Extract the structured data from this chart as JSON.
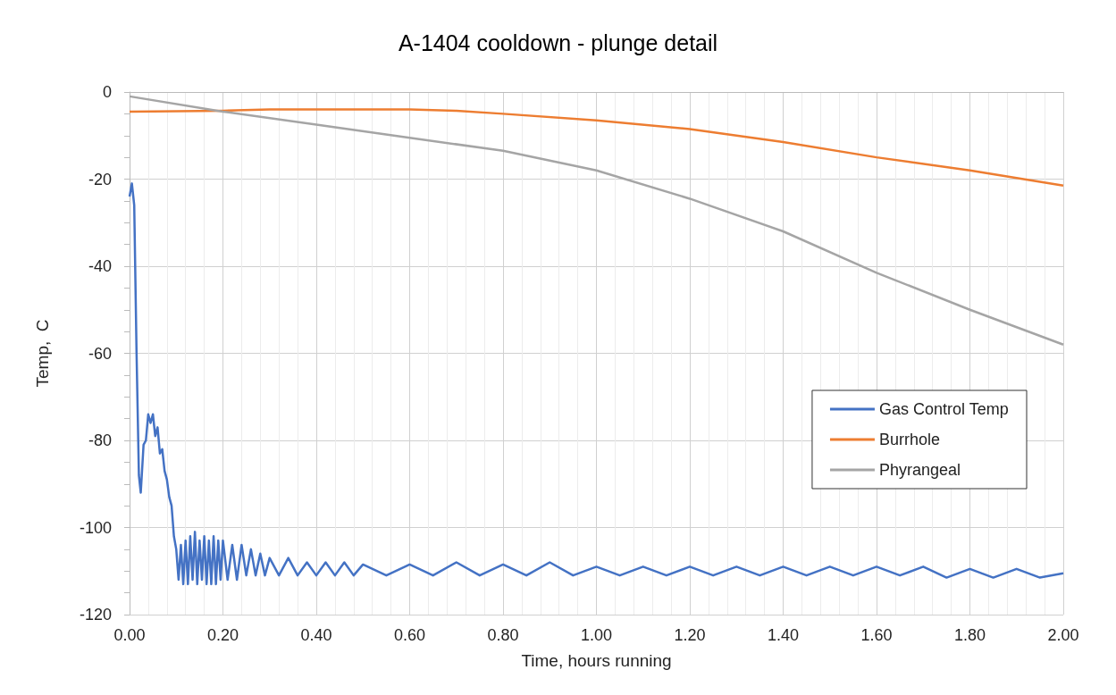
{
  "chart_data": {
    "type": "line",
    "title": "A-1404 cooldown - plunge detail",
    "xlabel": "Time, hours running",
    "ylabel": "Temp,  C",
    "xlim": [
      0,
      2
    ],
    "xticks": [
      {
        "value": 0,
        "label": "0.00"
      },
      {
        "value": 0.2,
        "label": "0.20"
      },
      {
        "value": 0.4,
        "label": "0.40"
      },
      {
        "value": 0.6,
        "label": "0.60"
      },
      {
        "value": 0.8,
        "label": "0.80"
      },
      {
        "value": 1,
        "label": "1.00"
      },
      {
        "value": 1.2,
        "label": "1.20"
      },
      {
        "value": 1.4,
        "label": "1.40"
      },
      {
        "value": 1.6,
        "label": "1.60"
      },
      {
        "value": 1.8,
        "label": "1.80"
      },
      {
        "value": 2,
        "label": "2.00"
      }
    ],
    "ylim": [
      -120,
      0
    ],
    "yticks": [
      -120,
      -100,
      -80,
      -60,
      -40,
      -20,
      0
    ],
    "grid": true,
    "legend": "right",
    "marker": "none",
    "line_style": "solid",
    "series": [
      {
        "name": "Gas Control Temp",
        "color": "#4472c4",
        "x": [
          0,
          0.005,
          0.01,
          0.015,
          0.02,
          0.024,
          0.03,
          0.035,
          0.04,
          0.045,
          0.05,
          0.055,
          0.06,
          0.065,
          0.07,
          0.075,
          0.08,
          0.085,
          0.09,
          0.095,
          0.1,
          0.105,
          0.11,
          0.115,
          0.12,
          0.125,
          0.13,
          0.135,
          0.14,
          0.145,
          0.15,
          0.155,
          0.16,
          0.165,
          0.17,
          0.175,
          0.18,
          0.185,
          0.19,
          0.195,
          0.2,
          0.21,
          0.22,
          0.23,
          0.24,
          0.25,
          0.26,
          0.27,
          0.28,
          0.29,
          0.3,
          0.32,
          0.34,
          0.36,
          0.38,
          0.4,
          0.42,
          0.44,
          0.46,
          0.48,
          0.5,
          0.55,
          0.6,
          0.65,
          0.7,
          0.75,
          0.8,
          0.85,
          0.9,
          0.95,
          1,
          1.05,
          1.1,
          1.15,
          1.2,
          1.25,
          1.3,
          1.35,
          1.4,
          1.45,
          1.5,
          1.55,
          1.6,
          1.65,
          1.7,
          1.75,
          1.8,
          1.85,
          1.9,
          1.95,
          2
        ],
        "values": [
          -24,
          -21,
          -26,
          -60,
          -88,
          -92,
          -81,
          -80,
          -74,
          -76,
          -74,
          -79,
          -77,
          -83,
          -82,
          -87,
          -89,
          -93,
          -95,
          -102,
          -105,
          -112,
          -104,
          -113,
          -103,
          -113,
          -102,
          -112,
          -101,
          -113,
          -103,
          -112,
          -102,
          -113,
          -103,
          -113,
          -102,
          -113,
          -103,
          -112,
          -103,
          -112,
          -104,
          -112,
          -104,
          -111,
          -105,
          -111,
          -106,
          -111,
          -107,
          -111,
          -107,
          -111,
          -108,
          -111,
          -108,
          -111,
          -108,
          -111,
          -108.5,
          -111,
          -108.5,
          -111,
          -108,
          -111,
          -108.5,
          -111,
          -108,
          -111,
          -109,
          -111,
          -109,
          -111,
          -109,
          -111,
          -109,
          -111,
          -109,
          -111,
          -109,
          -111,
          -109,
          -111,
          -109,
          -111.5,
          -109.5,
          -111.5,
          -109.5,
          -111.5,
          -110.5
        ]
      },
      {
        "name": "Burrhole",
        "color": "#ed7d31",
        "x": [
          0,
          0.2,
          0.3,
          0.6,
          0.7,
          0.8,
          1,
          1.2,
          1.4,
          1.6,
          1.8,
          2
        ],
        "values": [
          -4.5,
          -4.3,
          -4,
          -4,
          -4.3,
          -5,
          -6.5,
          -8.5,
          -11.5,
          -15,
          -18,
          -21.5
        ]
      },
      {
        "name": "Phyrangeal",
        "color": "#a5a5a5",
        "x": [
          0,
          0.2,
          0.4,
          0.6,
          0.8,
          1,
          1.2,
          1.4,
          1.6,
          1.8,
          2
        ],
        "values": [
          -1,
          -4.5,
          -7.5,
          -10.5,
          -13.5,
          -18,
          -24.5,
          -32,
          -41.5,
          -50,
          -58
        ]
      }
    ]
  }
}
